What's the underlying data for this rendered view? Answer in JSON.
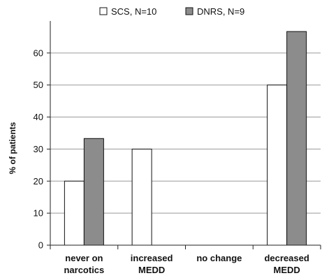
{
  "chart_data": {
    "type": "bar",
    "title": "",
    "xlabel": "",
    "ylabel": "% of patients",
    "ylim": [
      0,
      70
    ],
    "yticks": [
      0,
      10,
      20,
      30,
      40,
      50,
      60
    ],
    "grid": "horizontal",
    "legend_position": "top",
    "categories": [
      [
        "never on",
        "narcotics"
      ],
      [
        "increased",
        "MEDD"
      ],
      [
        "no change"
      ],
      [
        "decreased",
        "MEDD"
      ]
    ],
    "series": [
      {
        "name": "SCS, N=10",
        "color": "#ffffff",
        "values": [
          20,
          30,
          0,
          50
        ]
      },
      {
        "name": "DNRS, N=9",
        "color": "#8c8c8c",
        "values": [
          33.3,
          0,
          0,
          66.7
        ]
      }
    ]
  }
}
